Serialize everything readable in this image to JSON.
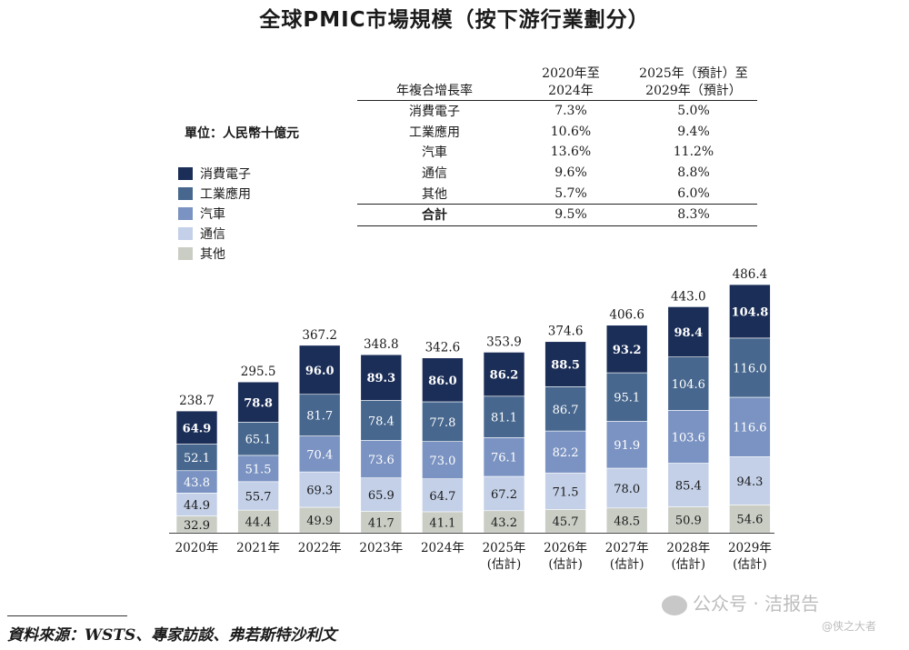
{
  "title": "全球PMIC市場規模（按下游行業劃分）",
  "unit_label": "單位：人民幣十億元",
  "legend": [
    {
      "label": "消費電子",
      "color": "#1b2e57"
    },
    {
      "label": "工業應用",
      "color": "#47678e"
    },
    {
      "label": "汽車",
      "color": "#7b93c2"
    },
    {
      "label": "通信",
      "color": "#c3d0e8"
    },
    {
      "label": "其他",
      "color": "#c9cdc4"
    }
  ],
  "cagr_table": {
    "header": [
      "年複合增長率",
      "2020年至\n2024年",
      "2025年（預計）至\n2029年（預計）"
    ],
    "rows": [
      [
        "消費電子",
        "7.3%",
        "5.0%"
      ],
      [
        "工業應用",
        "10.6%",
        "9.4%"
      ],
      [
        "汽車",
        "13.6%",
        "11.2%"
      ],
      [
        "通信",
        "9.6%",
        "8.8%"
      ],
      [
        "其他",
        "5.7%",
        "6.0%"
      ]
    ],
    "total": [
      "合計",
      "9.5%",
      "8.3%"
    ]
  },
  "chart_data": {
    "type": "bar",
    "stacked": true,
    "categories": [
      "2020年",
      "2021年",
      "2022年",
      "2023年",
      "2024年",
      "2025年\n(估計)",
      "2026年\n(估計)",
      "2027年\n(估計)",
      "2028年\n(估計)",
      "2029年\n(估計)"
    ],
    "series": [
      {
        "name": "其他",
        "color": "#c9cdc4",
        "values": [
          32.9,
          44.4,
          49.9,
          41.7,
          41.1,
          43.2,
          45.7,
          48.5,
          50.9,
          54.6
        ]
      },
      {
        "name": "通信",
        "color": "#c3d0e8",
        "values": [
          44.9,
          55.7,
          69.3,
          65.9,
          64.7,
          67.2,
          71.5,
          78.0,
          85.4,
          94.3
        ]
      },
      {
        "name": "汽車",
        "color": "#7b93c2",
        "values": [
          43.8,
          51.5,
          70.4,
          73.6,
          73.0,
          76.1,
          82.2,
          91.9,
          103.6,
          116.6
        ]
      },
      {
        "name": "工業應用",
        "color": "#47678e",
        "values": [
          52.1,
          65.1,
          81.7,
          78.4,
          77.8,
          81.1,
          86.7,
          95.1,
          104.6,
          116.0
        ]
      },
      {
        "name": "消費電子",
        "color": "#1b2e57",
        "values": [
          64.9,
          78.8,
          96.0,
          89.3,
          86.0,
          86.2,
          88.5,
          93.2,
          98.4,
          104.8
        ]
      }
    ],
    "totals": [
      238.7,
      295.5,
      367.2,
      348.8,
      342.6,
      353.9,
      374.6,
      406.6,
      443.0,
      486.4
    ],
    "ylim": [
      0,
      486.4
    ]
  },
  "source": "資料來源：WSTS、專家訪談、弗若斯特沙利文",
  "watermark": {
    "main": "公众号 · 洁报告",
    "sub": "@侠之大者"
  }
}
